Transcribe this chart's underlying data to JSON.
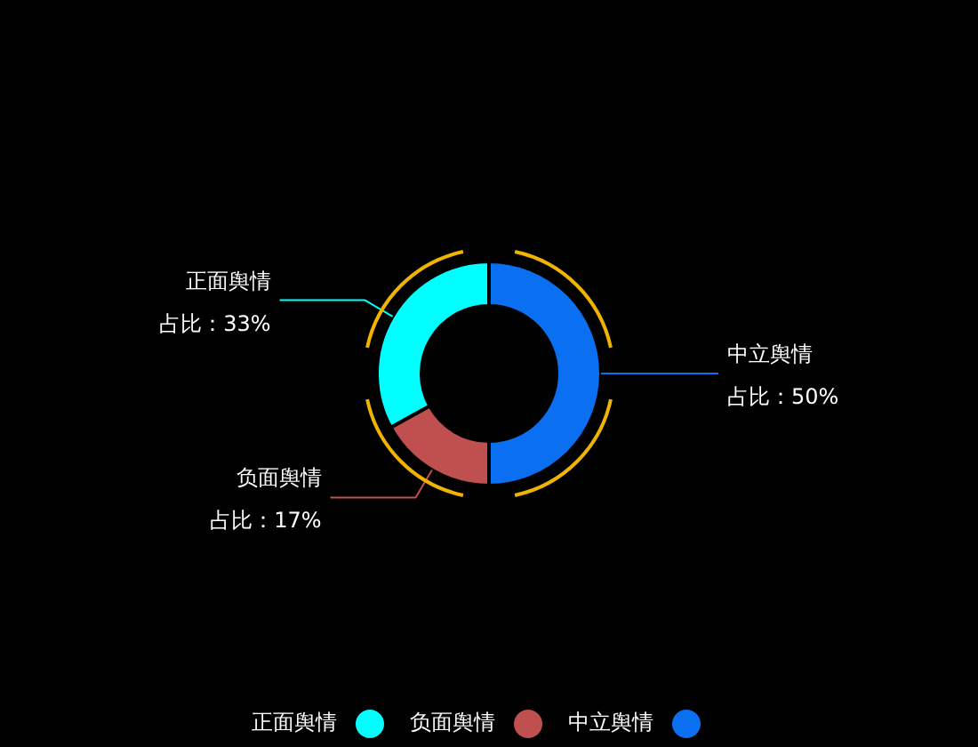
{
  "chart_data": {
    "type": "donut",
    "categories": [
      "正面舆情",
      "负面舆情",
      "中立舆情"
    ],
    "values": [
      33,
      17,
      50
    ],
    "colors": [
      "#00ffff",
      "#c0504f",
      "#0a6ff0"
    ],
    "value_labels": [
      "占比：33%",
      "占比：17%",
      "占比：50%"
    ],
    "legend": "bottom"
  }
}
